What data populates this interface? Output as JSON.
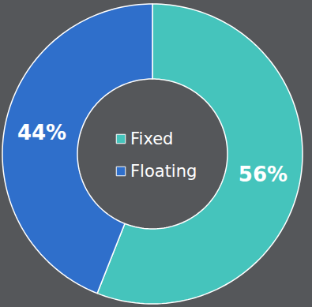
{
  "chart_data": {
    "type": "pie",
    "categories": [
      "Fixed",
      "Floating"
    ],
    "values": [
      56,
      44
    ],
    "value_labels": [
      "56%",
      "44%"
    ],
    "colors": [
      "#45c4bc",
      "#2f6fcb"
    ],
    "data_labels": true,
    "legend": "center"
  }
}
